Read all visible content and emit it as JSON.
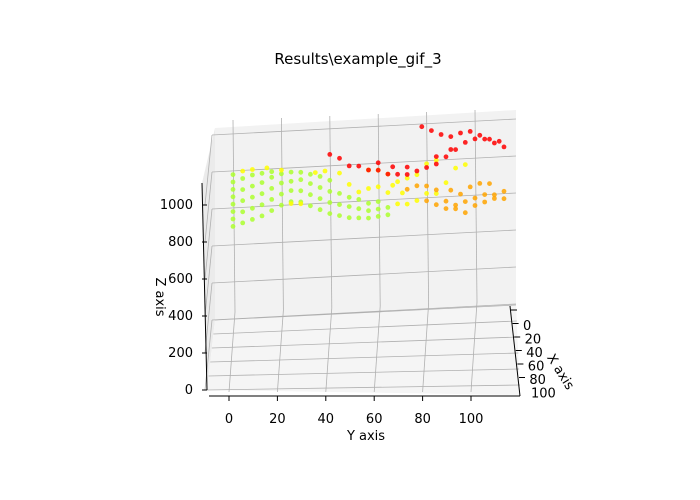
{
  "chart_data": {
    "type": "scatter",
    "title": "Results\\example_gif_3",
    "xlabel": "X axis",
    "ylabel": "Y axis",
    "zlabel": "Z axis",
    "projection": "3d",
    "grid": true,
    "colors": {
      "low": "#adff2f",
      "mid": "#ffff00",
      "high1": "#ffa500",
      "high2": "#ff0000"
    },
    "axes": {
      "y": {
        "ticks": [
          0,
          20,
          40,
          60,
          80,
          100
        ]
      },
      "z": {
        "ticks": [
          0,
          200,
          400,
          600,
          800,
          1000
        ]
      },
      "x": {
        "ticks": [
          0,
          20,
          40,
          60,
          80,
          100
        ]
      }
    },
    "series": [
      {
        "color": "#adff2f",
        "points": [
          [
            0,
            0,
            560
          ],
          [
            0,
            0,
            600
          ],
          [
            0,
            0,
            640
          ],
          [
            0,
            0,
            680
          ],
          [
            0,
            0,
            720
          ],
          [
            0,
            0,
            760
          ],
          [
            0,
            0,
            800
          ],
          [
            0,
            0,
            840
          ],
          [
            0,
            4,
            580
          ],
          [
            0,
            4,
            640
          ],
          [
            0,
            4,
            700
          ],
          [
            0,
            4,
            760
          ],
          [
            0,
            4,
            820
          ],
          [
            0,
            8,
            600
          ],
          [
            0,
            8,
            660
          ],
          [
            0,
            8,
            720
          ],
          [
            0,
            8,
            780
          ],
          [
            0,
            8,
            840
          ],
          [
            0,
            12,
            620
          ],
          [
            0,
            12,
            680
          ],
          [
            0,
            12,
            740
          ],
          [
            0,
            12,
            800
          ],
          [
            0,
            12,
            850
          ],
          [
            0,
            16,
            650
          ],
          [
            0,
            16,
            710
          ],
          [
            0,
            16,
            770
          ],
          [
            0,
            16,
            830
          ],
          [
            0,
            16,
            860
          ],
          [
            0,
            20,
            680
          ],
          [
            0,
            20,
            740
          ],
          [
            0,
            20,
            800
          ],
          [
            0,
            20,
            850
          ],
          [
            0,
            24,
            700
          ],
          [
            0,
            24,
            760
          ],
          [
            0,
            24,
            810
          ],
          [
            0,
            24,
            860
          ],
          [
            0,
            28,
            700
          ],
          [
            0,
            28,
            760
          ],
          [
            0,
            28,
            820
          ],
          [
            0,
            28,
            860
          ],
          [
            0,
            32,
            680
          ],
          [
            0,
            32,
            740
          ],
          [
            0,
            32,
            800
          ],
          [
            0,
            32,
            850
          ],
          [
            0,
            36,
            660
          ],
          [
            0,
            36,
            720
          ],
          [
            0,
            36,
            780
          ],
          [
            0,
            36,
            840
          ],
          [
            0,
            40,
            640
          ],
          [
            0,
            40,
            700
          ],
          [
            0,
            40,
            760
          ],
          [
            0,
            40,
            820
          ],
          [
            0,
            44,
            630
          ],
          [
            0,
            44,
            690
          ],
          [
            0,
            44,
            750
          ],
          [
            0,
            48,
            620
          ],
          [
            0,
            48,
            680
          ],
          [
            0,
            48,
            730
          ],
          [
            0,
            52,
            620
          ],
          [
            0,
            52,
            670
          ],
          [
            0,
            52,
            720
          ],
          [
            0,
            56,
            620
          ],
          [
            0,
            56,
            660
          ],
          [
            0,
            56,
            700
          ],
          [
            0,
            60,
            630
          ],
          [
            0,
            60,
            670
          ],
          [
            0,
            60,
            710
          ],
          [
            0,
            64,
            640
          ],
          [
            0,
            64,
            680
          ]
        ]
      },
      {
        "color": "#ffff00",
        "points": [
          [
            0,
            4,
            860
          ],
          [
            0,
            8,
            870
          ],
          [
            0,
            14,
            880
          ],
          [
            0,
            20,
            870
          ],
          [
            0,
            24,
            690
          ],
          [
            0,
            28,
            690
          ],
          [
            0,
            34,
            860
          ],
          [
            0,
            38,
            870
          ],
          [
            0,
            44,
            860
          ],
          [
            0,
            48,
            800
          ],
          [
            0,
            52,
            760
          ],
          [
            0,
            56,
            780
          ],
          [
            0,
            60,
            790
          ],
          [
            0,
            64,
            760
          ],
          [
            0,
            68,
            700
          ],
          [
            0,
            72,
            700
          ],
          [
            0,
            76,
            720
          ],
          [
            0,
            80,
            760
          ],
          [
            0,
            84,
            760
          ],
          [
            0,
            88,
            820
          ],
          [
            0,
            92,
            900
          ],
          [
            0,
            96,
            920
          ],
          [
            0,
            56,
            880
          ],
          [
            0,
            60,
            880
          ],
          [
            0,
            64,
            860
          ],
          [
            0,
            68,
            820
          ],
          [
            0,
            72,
            840
          ],
          [
            0,
            76,
            860
          ],
          [
            0,
            80,
            920
          ],
          [
            0,
            84,
            940
          ],
          [
            0,
            70,
            760
          ],
          [
            0,
            66,
            800
          ]
        ]
      },
      {
        "color": "#ffa500",
        "points": [
          [
            0,
            72,
            780
          ],
          [
            0,
            76,
            800
          ],
          [
            0,
            80,
            800
          ],
          [
            0,
            84,
            780
          ],
          [
            0,
            88,
            720
          ],
          [
            0,
            92,
            700
          ],
          [
            0,
            96,
            720
          ],
          [
            0,
            100,
            740
          ],
          [
            0,
            104,
            760
          ],
          [
            0,
            108,
            760
          ],
          [
            0,
            112,
            780
          ],
          [
            0,
            80,
            720
          ],
          [
            0,
            84,
            700
          ],
          [
            0,
            88,
            680
          ],
          [
            0,
            92,
            680
          ],
          [
            0,
            96,
            660
          ],
          [
            0,
            100,
            700
          ],
          [
            0,
            104,
            720
          ],
          [
            0,
            108,
            740
          ],
          [
            0,
            112,
            740
          ],
          [
            0,
            90,
            780
          ],
          [
            0,
            94,
            760
          ],
          [
            0,
            98,
            800
          ],
          [
            0,
            102,
            820
          ],
          [
            0,
            106,
            820
          ]
        ]
      },
      {
        "color": "#ff0000",
        "points": [
          [
            0,
            40,
            960
          ],
          [
            0,
            44,
            940
          ],
          [
            0,
            48,
            900
          ],
          [
            0,
            52,
            900
          ],
          [
            0,
            56,
            880
          ],
          [
            0,
            60,
            880
          ],
          [
            0,
            64,
            860
          ],
          [
            0,
            68,
            860
          ],
          [
            0,
            72,
            860
          ],
          [
            0,
            76,
            880
          ],
          [
            0,
            80,
            900
          ],
          [
            0,
            84,
            920
          ],
          [
            0,
            88,
            960
          ],
          [
            0,
            92,
            1000
          ],
          [
            0,
            96,
            1040
          ],
          [
            0,
            100,
            1060
          ],
          [
            0,
            104,
            1060
          ],
          [
            0,
            108,
            1040
          ],
          [
            0,
            112,
            1020
          ],
          [
            0,
            78,
            1120
          ],
          [
            0,
            82,
            1100
          ],
          [
            0,
            86,
            1080
          ],
          [
            0,
            90,
            1070
          ],
          [
            0,
            94,
            1090
          ],
          [
            0,
            98,
            1100
          ],
          [
            0,
            102,
            1080
          ],
          [
            0,
            106,
            1060
          ],
          [
            0,
            110,
            1050
          ],
          [
            0,
            60,
            920
          ],
          [
            0,
            66,
            900
          ],
          [
            0,
            72,
            900
          ],
          [
            0,
            84,
            960
          ],
          [
            0,
            90,
            1000
          ]
        ]
      }
    ]
  }
}
